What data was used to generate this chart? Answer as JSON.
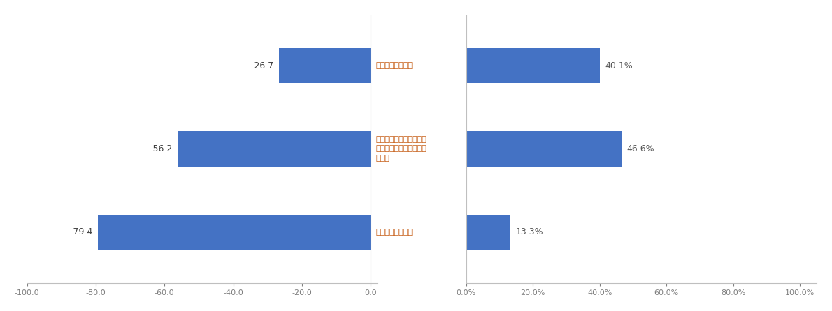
{
  "categories": [
    "十分理解している",
    "契約時は理解していたが\n現在はあまり理解できて\nいない",
    "理解できていない"
  ],
  "nps_values": [
    -26.7,
    -56.2,
    -79.4
  ],
  "pct_values": [
    40.1,
    46.6,
    13.3
  ],
  "bar_color": "#4472C4",
  "nps_xlim": [
    -100,
    0
  ],
  "pct_xlim": [
    0,
    100
  ],
  "nps_xticks": [
    -100.0,
    -80.0,
    -60.0,
    -40.0,
    -20.0,
    0.0
  ],
  "pct_xticks": [
    0.0,
    20.0,
    40.0,
    60.0,
    80.0,
    100.0
  ],
  "bar_height": 0.55,
  "background_color": "#ffffff",
  "text_color": "#595959",
  "label_color_nps": "#7F7F7F",
  "label_color_pct": "#7F7F7F",
  "axis_color": "#BFBFBF",
  "category_color": "#C55A11",
  "value_color_nps": "#404040",
  "value_color_pct": "#595959"
}
